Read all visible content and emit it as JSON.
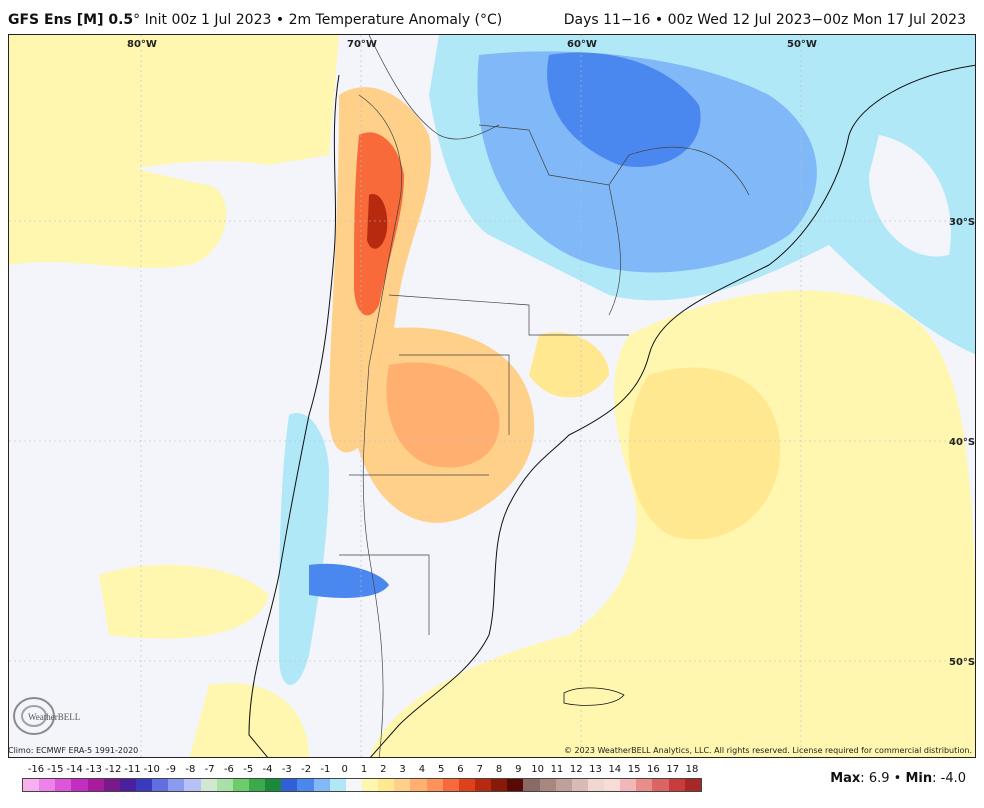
{
  "header": {
    "model": "GFS Ens [M] 0.5",
    "deg": "°",
    "init": "Init 00z 1 Jul 2023",
    "sep": "•",
    "variable": "2m Temperature Anomaly (°C)",
    "days": "Days 11−16",
    "range": "00z Wed 12 Jul 2023−00z Mon 17 Jul 2023"
  },
  "map": {
    "lon_labels": [
      "80°W",
      "70°W",
      "60°W",
      "50°W"
    ],
    "lat_labels": [
      "30°S",
      "40°S",
      "50°S"
    ]
  },
  "logo": {
    "text": "WeatherBELL"
  },
  "footer": {
    "climo": "Climo: ECMWF ERA-5 1991-2020",
    "copyright": "© 2023 WeatherBELL Analytics, LLC. All rights reserved. License required for commercial distribution."
  },
  "legend": {
    "ticks": [
      "-16",
      "-15",
      "-14",
      "-13",
      "-12",
      "-11",
      "-10",
      "-9",
      "-8",
      "-7",
      "-6",
      "-5",
      "-4",
      "-3",
      "-2",
      "-1",
      "0",
      "1",
      "2",
      "3",
      "4",
      "5",
      "6",
      "7",
      "8",
      "9",
      "10",
      "11",
      "12",
      "13",
      "14",
      "15",
      "16",
      "17",
      "18"
    ],
    "colors": [
      "#f7b1f0",
      "#ee82e8",
      "#dd55d8",
      "#c42ec0",
      "#a81a9e",
      "#7a1a8a",
      "#4a20a0",
      "#3a3ac0",
      "#6070e0",
      "#8a9af0",
      "#b8c0f8",
      "#cfe8cf",
      "#a8e0a8",
      "#6ccc6c",
      "#3aaa4a",
      "#1a8a3a",
      "#3060d8",
      "#4a88f0",
      "#80b8f8",
      "#b0e8f8",
      "#f4f6fa",
      "#fff7b0",
      "#ffe890",
      "#ffd08a",
      "#ffb070",
      "#ff9258",
      "#f86a3a",
      "#e0401a",
      "#b82a10",
      "#881a0a",
      "#5a0a04",
      "#8a6a64",
      "#a8887e",
      "#c0a09a",
      "#d8bcb4",
      "#f0d8d0",
      "#f8dcd8",
      "#f2b8b8",
      "#e88c8c",
      "#dc6464",
      "#c83c3c",
      "#a82828"
    ]
  },
  "maxmin": {
    "max_label": "Max",
    "max_value": "6.9",
    "sep": "•",
    "min_label": "Min",
    "min_value": "-4.0"
  }
}
